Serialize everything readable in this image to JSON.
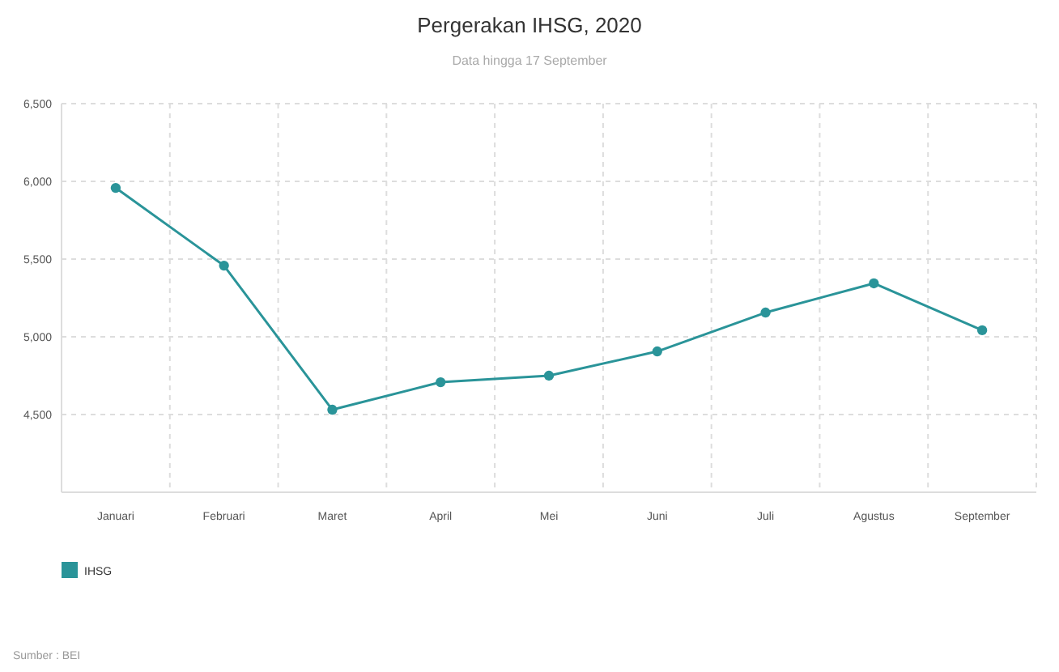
{
  "chart_data": {
    "type": "line",
    "title": "Pergerakan IHSG, 2020",
    "subtitle": "Data hingga 17 September",
    "categories": [
      "Januari",
      "Februari",
      "Maret",
      "April",
      "Mei",
      "Juni",
      "Juli",
      "Agustus",
      "September"
    ],
    "series": [
      {
        "name": "IHSG",
        "color": "#2a9499",
        "values": [
          5958,
          5458,
          4531,
          4708,
          4750,
          4906,
          5156,
          5344,
          5042
        ]
      }
    ],
    "ylim": [
      4000,
      6500
    ],
    "yticks": [
      {
        "value": 4500,
        "label": "4,500"
      },
      {
        "value": 5000,
        "label": "5,000"
      },
      {
        "value": 5500,
        "label": "5,500"
      },
      {
        "value": 6000,
        "label": "6,000"
      },
      {
        "value": 6500,
        "label": "6,500"
      }
    ],
    "grid": true,
    "legend": "bottom left",
    "marker": "circle",
    "line_style": "solid",
    "annotations": [
      "Sumber : BEI"
    ]
  }
}
